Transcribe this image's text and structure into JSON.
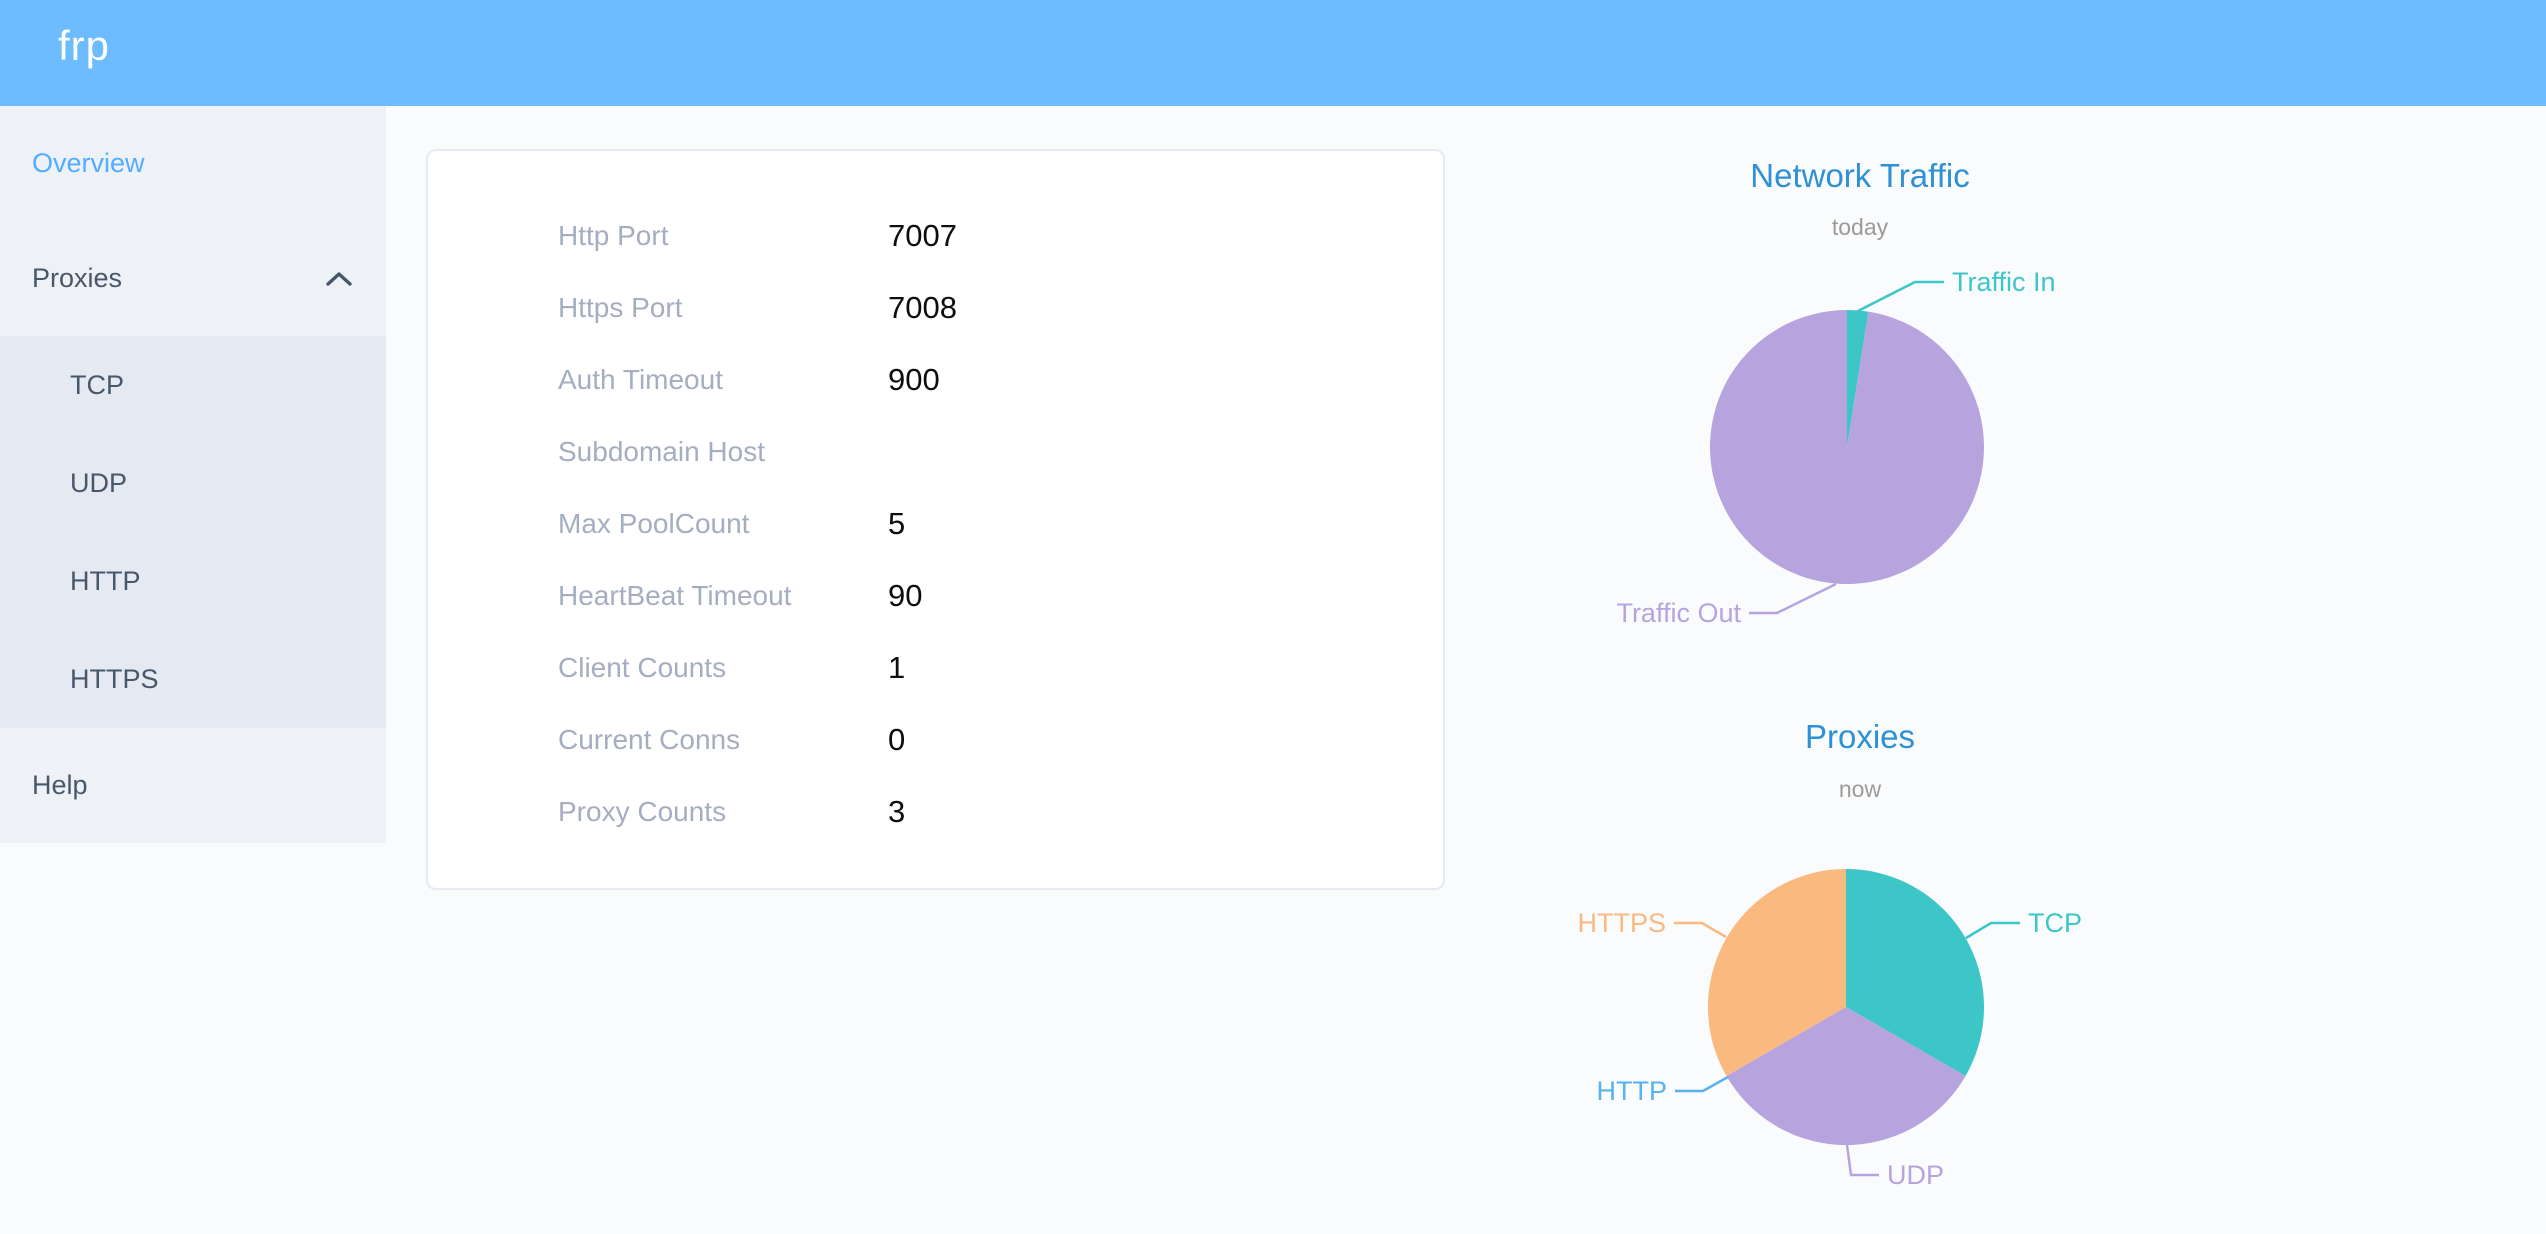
{
  "header": {
    "logo": "frp"
  },
  "sidebar": {
    "items": [
      {
        "label": "Overview",
        "active": true
      },
      {
        "label": "Proxies",
        "expanded": true
      },
      {
        "label": "TCP"
      },
      {
        "label": "UDP"
      },
      {
        "label": "HTTP"
      },
      {
        "label": "HTTPS"
      },
      {
        "label": "Help"
      }
    ]
  },
  "overview_card": {
    "rows": [
      {
        "label": "Http Port",
        "value": "7007"
      },
      {
        "label": "Https Port",
        "value": "7008"
      },
      {
        "label": "Auth Timeout",
        "value": "900"
      },
      {
        "label": "Subdomain Host",
        "value": ""
      },
      {
        "label": "Max PoolCount",
        "value": "5"
      },
      {
        "label": "HeartBeat Timeout",
        "value": "90"
      },
      {
        "label": "Client Counts",
        "value": "1"
      },
      {
        "label": "Current Conns",
        "value": "0"
      },
      {
        "label": "Proxy Counts",
        "value": "3"
      }
    ]
  },
  "chart_data": [
    {
      "type": "pie",
      "title": "Network Traffic",
      "subtitle": "today",
      "legend_position": "callout-labels",
      "series": [
        {
          "name": "Traffic In",
          "value_pct": 2.5,
          "color": "#3cc6c8"
        },
        {
          "name": "Traffic Out",
          "value_pct": 97.5,
          "color": "#b7a4de"
        }
      ]
    },
    {
      "type": "pie",
      "title": "Proxies",
      "subtitle": "now",
      "legend_position": "callout-labels",
      "series": [
        {
          "name": "TCP",
          "value": 1,
          "color": "#3cc6c8"
        },
        {
          "name": "UDP",
          "value": 1,
          "color": "#b7a4de"
        },
        {
          "name": "HTTP",
          "value": 0,
          "color": "#5ab1ef"
        },
        {
          "name": "HTTPS",
          "value": 1,
          "color": "#f9b97f"
        }
      ]
    }
  ],
  "colors": {
    "header_bg": "#6cbcff",
    "sidebar_bg": "#eef2f7",
    "submenu_bg": "#e5e9f2",
    "active_link": "#52acff",
    "chart_title": "#2e91d5"
  }
}
